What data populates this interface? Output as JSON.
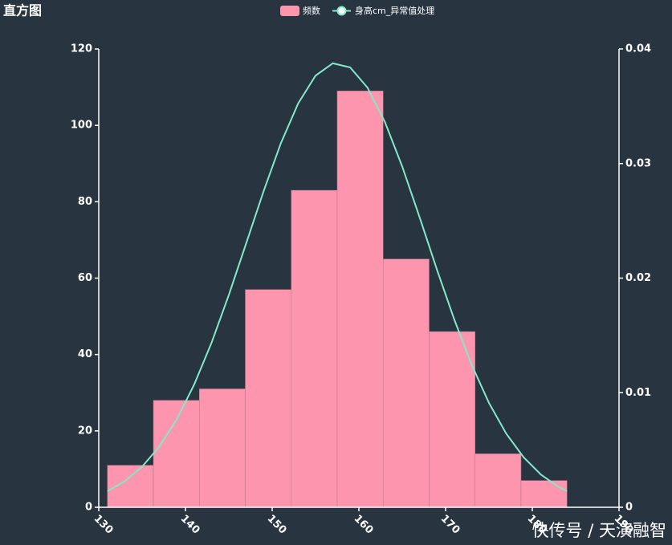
{
  "chart_data": {
    "type": "histogram",
    "title": "直方图",
    "watermark": "快传号 / 天演融智",
    "bins": [
      131,
      136.3,
      141.6,
      146.9,
      152.2,
      157.5,
      162.8,
      168.1,
      173.4,
      178.7,
      184
    ],
    "series": [
      {
        "name": "频数",
        "type": "histogram",
        "color": "#fd95ae",
        "values": [
          11,
          28,
          31,
          57,
          83,
          109,
          65,
          46,
          14,
          7
        ]
      },
      {
        "name": "身高cm_异常值处理",
        "type": "line",
        "axis": "y2",
        "color": "#82eac8",
        "x": [
          131,
          133,
          135,
          137,
          139,
          141,
          143,
          145,
          147,
          149,
          151,
          153,
          155,
          157,
          159,
          161,
          163,
          165,
          167,
          169,
          171,
          173,
          175,
          177,
          179,
          181,
          183,
          184
        ],
        "values": [
          0.0014,
          0.00227,
          0.00354,
          0.00531,
          0.00768,
          0.0107,
          0.01434,
          0.01853,
          0.02303,
          0.02756,
          0.03177,
          0.03525,
          0.03767,
          0.03875,
          0.03839,
          0.03662,
          0.03363,
          0.02974,
          0.02532,
          0.02075,
          0.01639,
          0.01245,
          0.00911,
          0.00642,
          0.00436,
          0.00285,
          0.00179,
          0.0014
        ]
      }
    ],
    "xlim": [
      130,
      190
    ],
    "xticks": [
      130,
      140,
      150,
      160,
      170,
      180,
      190
    ],
    "ylim": [
      0,
      120
    ],
    "yticks": [
      0,
      20,
      40,
      60,
      80,
      100,
      120
    ],
    "y2lim": [
      0,
      0.04
    ],
    "y2ticks": [
      0,
      0.01,
      0.02,
      0.03,
      0.04
    ],
    "grid": false
  }
}
